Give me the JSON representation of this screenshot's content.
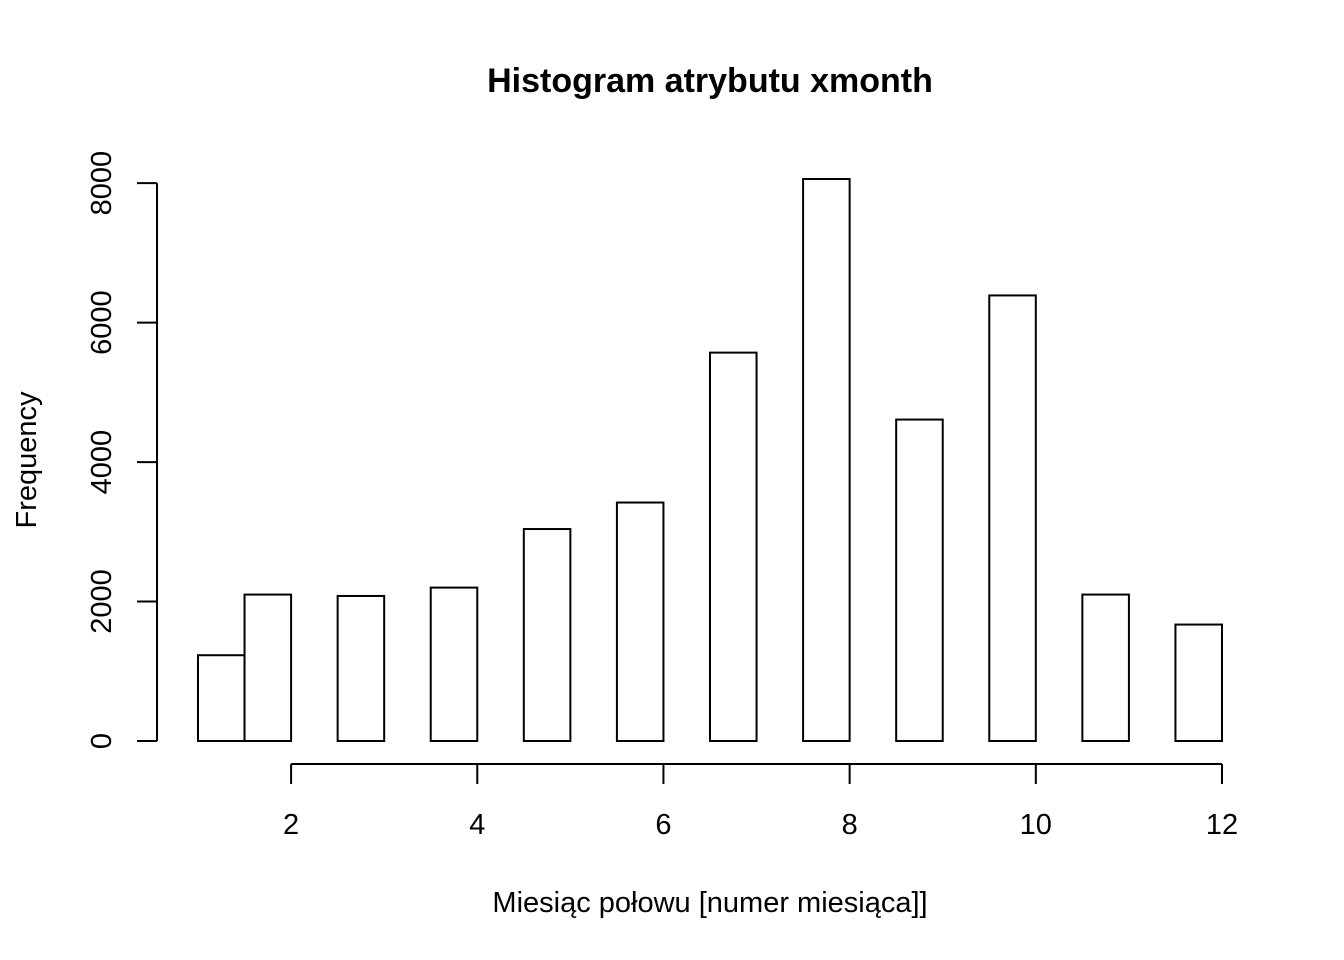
{
  "chart_data": {
    "type": "bar",
    "title": "Histogram atrybutu xmonth",
    "xlabel": "Miesiąc połowu [numer miesiąca]]",
    "ylabel": "Frequency",
    "bins": [
      [
        1.0,
        1.5
      ],
      [
        1.5,
        2.0
      ],
      [
        2.5,
        3.0
      ],
      [
        3.5,
        4.0
      ],
      [
        4.5,
        5.0
      ],
      [
        5.5,
        6.0
      ],
      [
        6.5,
        7.0
      ],
      [
        7.5,
        8.0
      ],
      [
        8.5,
        9.0
      ],
      [
        9.5,
        10.0
      ],
      [
        10.5,
        11.0
      ],
      [
        11.5,
        12.0
      ]
    ],
    "values": [
      1230,
      2100,
      2080,
      2200,
      3040,
      3420,
      5570,
      8060,
      4610,
      6390,
      2100,
      1670
    ],
    "xlim": [
      1,
      12
    ],
    "ylim": [
      0,
      8060
    ],
    "xticks": [
      2,
      4,
      6,
      8,
      10,
      12
    ],
    "xtick_labels": [
      "2",
      "4",
      "6",
      "8",
      "10",
      "12"
    ],
    "yticks": [
      0,
      2000,
      4000,
      6000,
      8000
    ],
    "ytick_labels": [
      "0",
      "2000",
      "4000",
      "6000",
      "8000"
    ],
    "grid": false,
    "colors": {
      "bar_fill": "#ffffff",
      "bar_stroke": "#000000"
    }
  }
}
